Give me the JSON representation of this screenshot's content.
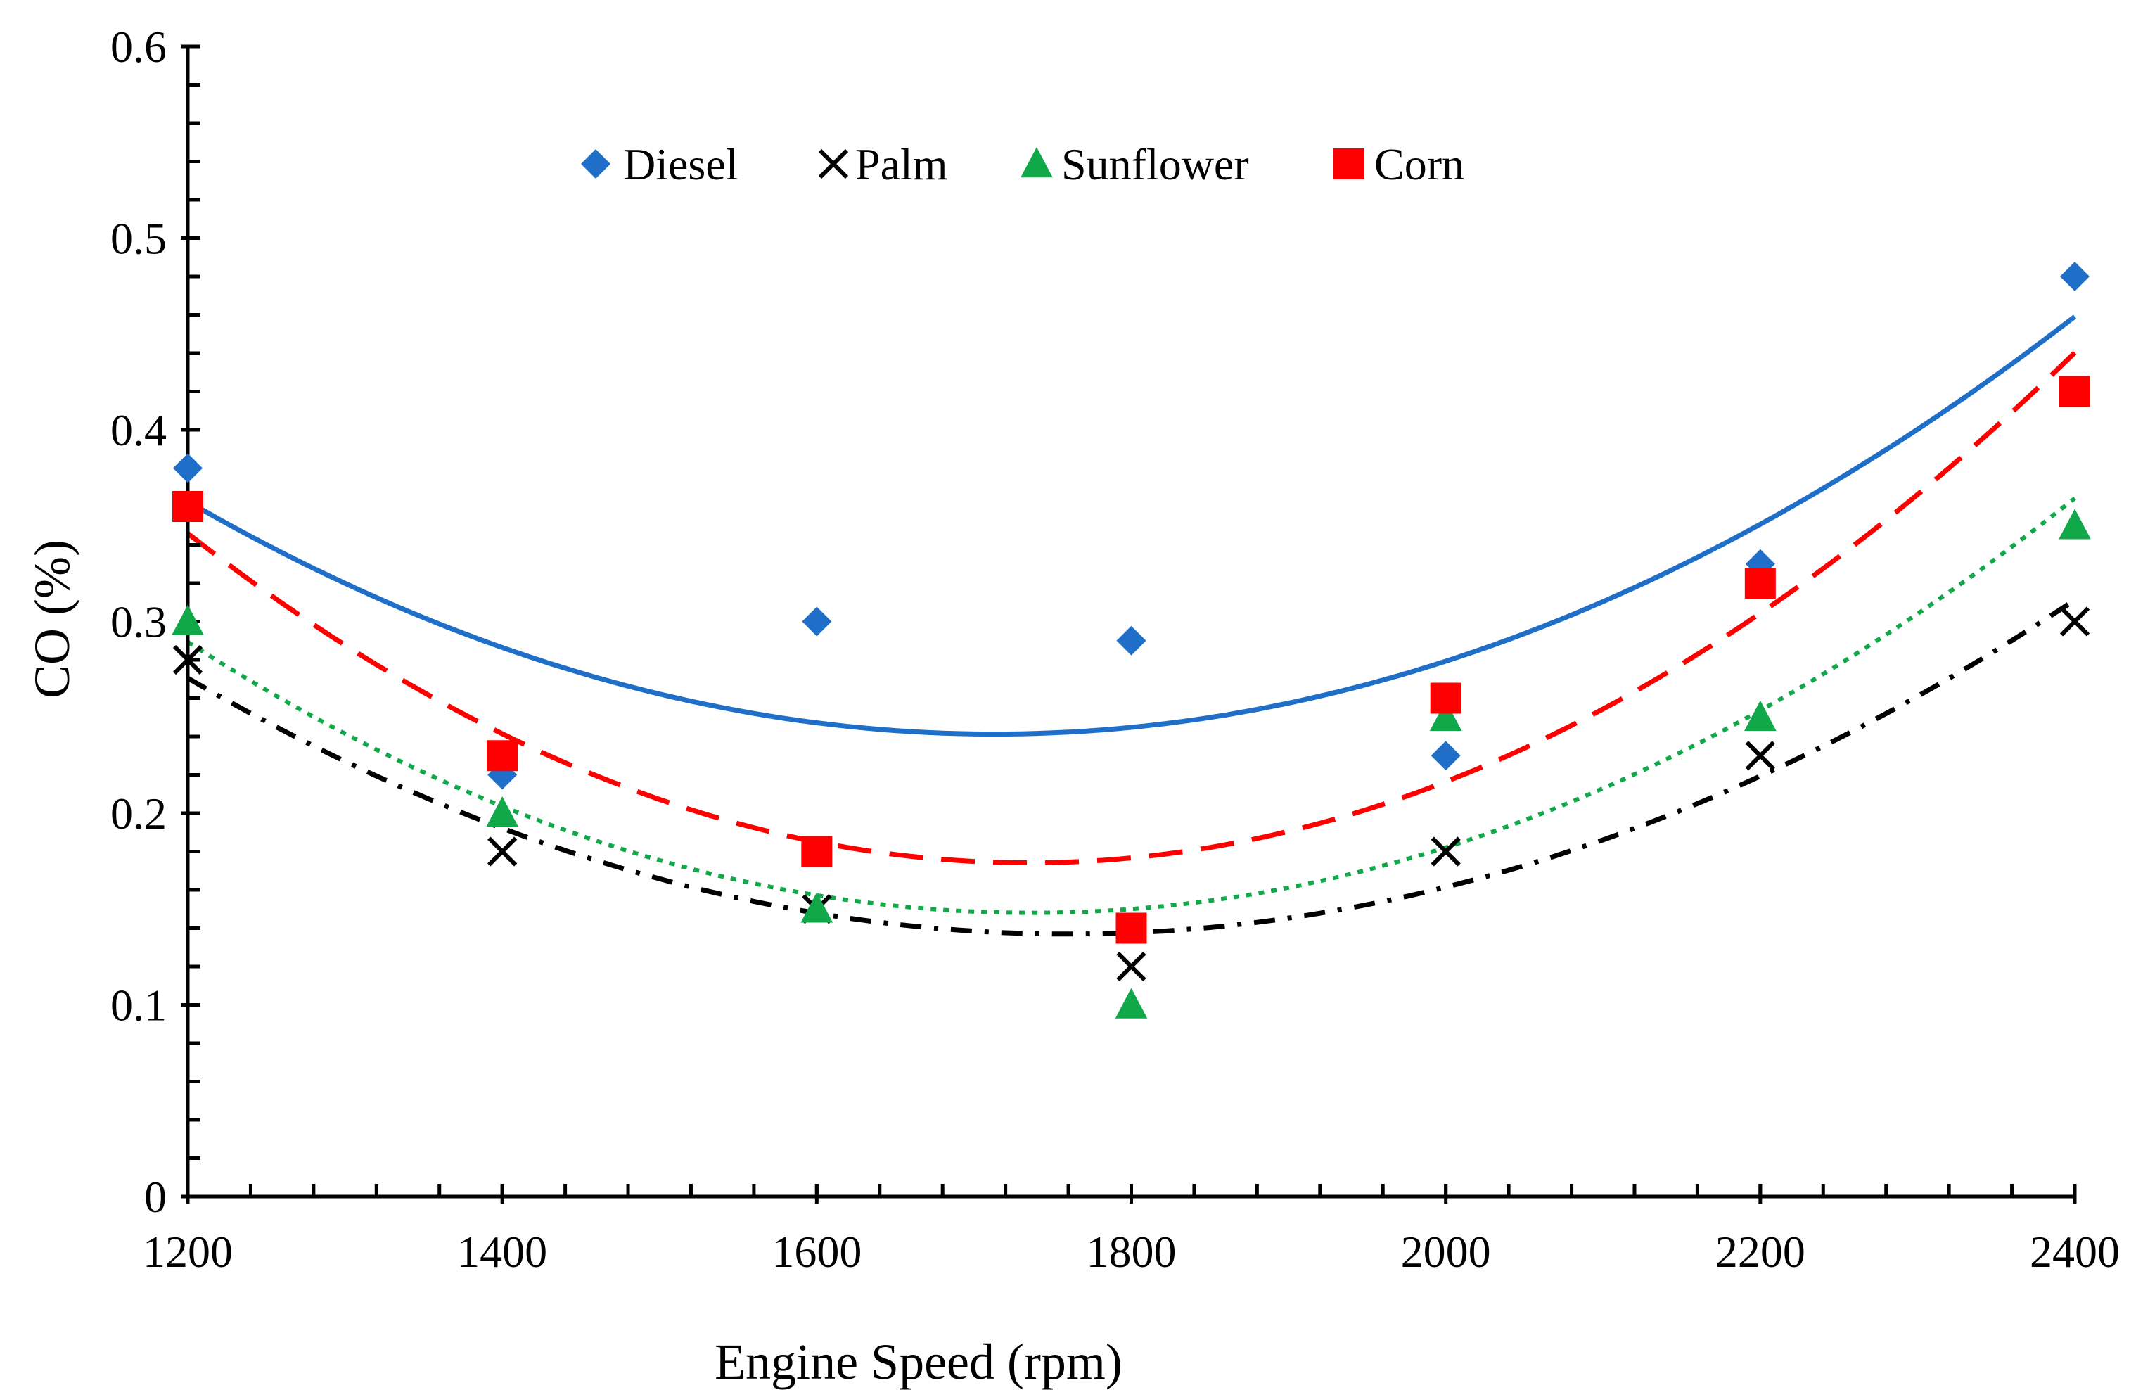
{
  "chart_data": {
    "type": "scatter",
    "title": "",
    "xlabel": "Engine Speed (rpm)",
    "ylabel": "CO (%)",
    "xlim": [
      1200,
      2400
    ],
    "ylim": [
      0,
      0.6
    ],
    "x_ticks": [
      1200,
      1400,
      1600,
      1800,
      2000,
      2200,
      2400
    ],
    "x_tick_labels": [
      "1200",
      "1400",
      "1600",
      "1800",
      "2000",
      "2200",
      "2400"
    ],
    "y_ticks": [
      0,
      0.1,
      0.2,
      0.3,
      0.4,
      0.5,
      0.6
    ],
    "y_tick_labels": [
      "0",
      "0.1",
      "0.2",
      "0.3",
      "0.4",
      "0.5",
      "0.6"
    ],
    "grid": false,
    "legend_position": "top-center",
    "trendline": "polynomial order 2",
    "x": [
      1200,
      1400,
      1600,
      1800,
      2000,
      2200,
      2400
    ],
    "series": [
      {
        "name": "Diesel",
        "marker": "diamond",
        "color": "#1f6fc8",
        "line_style": "solid",
        "values": [
          0.38,
          0.22,
          0.3,
          0.29,
          0.23,
          0.33,
          0.48
        ]
      },
      {
        "name": "Palm",
        "marker": "x",
        "color": "#000000",
        "line_style": "dash-dot",
        "values": [
          0.28,
          0.18,
          0.15,
          0.12,
          0.18,
          0.23,
          0.3
        ]
      },
      {
        "name": "Sunflower",
        "marker": "triangle",
        "color": "#11a84a",
        "line_style": "dotted",
        "values": [
          0.3,
          0.2,
          0.15,
          0.1,
          0.25,
          0.25,
          0.35
        ]
      },
      {
        "name": "Corn",
        "marker": "square",
        "color": "#ff0000",
        "line_style": "dashed",
        "values": [
          0.36,
          0.23,
          0.18,
          0.14,
          0.26,
          0.32,
          0.42
        ]
      }
    ]
  }
}
